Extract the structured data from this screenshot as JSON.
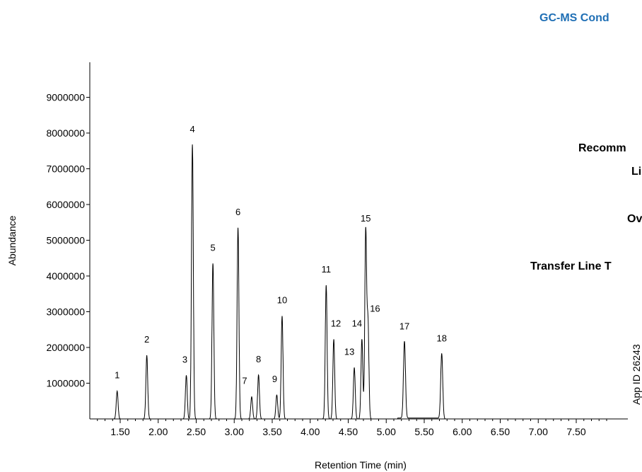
{
  "header": {
    "title": "GC-MS Cond"
  },
  "side_labels": [
    "Recomm",
    "Li",
    "Ov",
    "Transfer Line T"
  ],
  "app_id": "App ID 26243",
  "chart_data": {
    "type": "line",
    "title": "",
    "xlabel": "Retention Time (min)",
    "ylabel": "Abundance",
    "xlim": [
      1.12,
      8.0
    ],
    "ylim": [
      0,
      10000000
    ],
    "x_ticks": [
      "1.50",
      "2.00",
      "2.50",
      "3.00",
      "3.50",
      "4.00",
      "4.50",
      "5.00",
      "5.50",
      "6.00",
      "6.50",
      "7.00",
      "7.50"
    ],
    "y_ticks": [
      "1000000",
      "2000000",
      "3000000",
      "4000000",
      "5000000",
      "6000000",
      "7000000",
      "8000000",
      "9000000"
    ],
    "grid": false,
    "peaks": [
      {
        "label": "1",
        "rt": 1.46,
        "abundance": 780000
      },
      {
        "label": "2",
        "rt": 1.85,
        "abundance": 1780000
      },
      {
        "label": "3",
        "rt": 2.37,
        "abundance": 1220000
      },
      {
        "label": "4",
        "rt": 2.45,
        "abundance": 7680000
      },
      {
        "label": "5",
        "rt": 2.72,
        "abundance": 4350000
      },
      {
        "label": "6",
        "rt": 3.05,
        "abundance": 5350000
      },
      {
        "label": "7",
        "rt": 3.23,
        "abundance": 620000
      },
      {
        "label": "8",
        "rt": 3.32,
        "abundance": 1230000
      },
      {
        "label": "9",
        "rt": 3.56,
        "abundance": 670000
      },
      {
        "label": "10",
        "rt": 3.63,
        "abundance": 2880000
      },
      {
        "label": "11",
        "rt": 4.21,
        "abundance": 3740000
      },
      {
        "label": "12",
        "rt": 4.31,
        "abundance": 2230000
      },
      {
        "label": "13",
        "rt": 4.58,
        "abundance": 1440000
      },
      {
        "label": "14",
        "rt": 4.68,
        "abundance": 2230000
      },
      {
        "label": "15",
        "rt": 4.73,
        "abundance": 5250000
      },
      {
        "label": "16",
        "rt": 4.76,
        "abundance": 2680000
      },
      {
        "label": "17",
        "rt": 5.24,
        "abundance": 2150000
      },
      {
        "label": "18",
        "rt": 5.73,
        "abundance": 1810000
      }
    ]
  }
}
